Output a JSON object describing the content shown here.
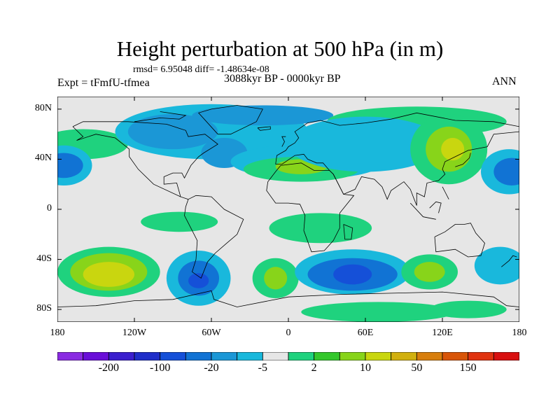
{
  "title": "Height perturbation at 500 hPa (in m)",
  "subtitle": "rmsd= 6.95048 diff= -1.48634e-08",
  "experiment": "Expt = tFmfU-tfmea",
  "period": "3088kyr BP - 0000kyr BP",
  "season": "ANN",
  "y_axis": {
    "labels": [
      "80N",
      "40N",
      "0",
      "40S",
      "80S"
    ],
    "lats": [
      80,
      40,
      0,
      -40,
      -80
    ],
    "range": [
      -90,
      90
    ]
  },
  "x_axis": {
    "labels": [
      "180",
      "120W",
      "60W",
      "0",
      "60E",
      "120E",
      "180"
    ],
    "lons": [
      -180,
      -120,
      -60,
      0,
      60,
      120,
      180
    ],
    "range": [
      -180,
      180
    ]
  },
  "colorbar": {
    "colors": [
      "#8a2be2",
      "#6a0fd8",
      "#3b1fce",
      "#1f2ec9",
      "#1550d8",
      "#1173d4",
      "#1b97d6",
      "#19b8dc",
      "#e6e6e6",
      "#1fd27e",
      "#34c72c",
      "#88d41a",
      "#c9d60f",
      "#d1b00f",
      "#d77e0d",
      "#d85508",
      "#e03310",
      "#d81010"
    ],
    "labels": [
      "-200",
      "-100",
      "-20",
      "-5",
      "2",
      "10",
      "50",
      "150"
    ],
    "label_after_box": [
      1,
      3,
      5,
      7,
      9,
      11,
      13,
      15
    ]
  },
  "map_fields": {
    "background_color": "#e6e6e6",
    "blobs": [
      {
        "lon": -160,
        "lat": 52,
        "rlon": 35,
        "rlat": 12,
        "color": "#1fd27e"
      },
      {
        "lon": -175,
        "lat": 35,
        "rlon": 22,
        "rlat": 16,
        "color": "#19b8dc"
      },
      {
        "lon": -175,
        "lat": 35,
        "rlon": 15,
        "rlat": 10,
        "color": "#1173d4"
      },
      {
        "lon": -60,
        "lat": 62,
        "rlon": 75,
        "rlat": 22,
        "color": "#19b8dc"
      },
      {
        "lon": -90,
        "lat": 62,
        "rlon": 35,
        "rlat": 14,
        "color": "#1b97d6"
      },
      {
        "lon": -50,
        "lat": 45,
        "rlon": 18,
        "rlat": 12,
        "color": "#1b97d6"
      },
      {
        "lon": -20,
        "lat": 75,
        "rlon": 55,
        "rlat": 8,
        "color": "#1b97d6"
      },
      {
        "lon": 15,
        "lat": 38,
        "rlon": 60,
        "rlat": 14,
        "color": "#19b8dc"
      },
      {
        "lon": 10,
        "lat": 32,
        "rlon": 45,
        "rlat": 10,
        "color": "#1fd27e"
      },
      {
        "lon": 10,
        "lat": 34,
        "rlon": 20,
        "rlat": 6,
        "color": "#88d41a"
      },
      {
        "lon": 100,
        "lat": 70,
        "rlon": 70,
        "rlat": 12,
        "color": "#1fd27e"
      },
      {
        "lon": 60,
        "lat": 52,
        "rlon": 60,
        "rlat": 22,
        "color": "#19b8dc"
      },
      {
        "lon": 125,
        "lat": 48,
        "rlon": 30,
        "rlat": 28,
        "color": "#1fd27e"
      },
      {
        "lon": 125,
        "lat": 48,
        "rlon": 18,
        "rlat": 18,
        "color": "#88d41a"
      },
      {
        "lon": 128,
        "lat": 48,
        "rlon": 9,
        "rlat": 9,
        "color": "#c9d60f"
      },
      {
        "lon": 172,
        "lat": 30,
        "rlon": 22,
        "rlat": 18,
        "color": "#19b8dc"
      },
      {
        "lon": 174,
        "lat": 30,
        "rlon": 14,
        "rlat": 11,
        "color": "#1173d4"
      },
      {
        "lon": -85,
        "lat": -10,
        "rlon": 30,
        "rlat": 8,
        "color": "#1fd27e"
      },
      {
        "lon": 25,
        "lat": -15,
        "rlon": 40,
        "rlat": 12,
        "color": "#1fd27e"
      },
      {
        "lon": -140,
        "lat": -50,
        "rlon": 40,
        "rlat": 20,
        "color": "#1fd27e"
      },
      {
        "lon": -140,
        "lat": -50,
        "rlon": 30,
        "rlat": 15,
        "color": "#88d41a"
      },
      {
        "lon": -140,
        "lat": -52,
        "rlon": 20,
        "rlat": 10,
        "color": "#c9d60f"
      },
      {
        "lon": -70,
        "lat": -55,
        "rlon": 25,
        "rlat": 22,
        "color": "#19b8dc"
      },
      {
        "lon": -70,
        "lat": -55,
        "rlon": 16,
        "rlat": 14,
        "color": "#1173d4"
      },
      {
        "lon": -70,
        "lat": -57,
        "rlon": 8,
        "rlat": 6,
        "color": "#1550d8"
      },
      {
        "lon": -10,
        "lat": -55,
        "rlon": 18,
        "rlat": 16,
        "color": "#1fd27e"
      },
      {
        "lon": -10,
        "lat": -55,
        "rlon": 9,
        "rlat": 9,
        "color": "#88d41a"
      },
      {
        "lon": 50,
        "lat": -50,
        "rlon": 45,
        "rlat": 18,
        "color": "#19b8dc"
      },
      {
        "lon": 50,
        "lat": -52,
        "rlon": 35,
        "rlat": 13,
        "color": "#1173d4"
      },
      {
        "lon": 50,
        "lat": -52,
        "rlon": 15,
        "rlat": 8,
        "color": "#1550d8"
      },
      {
        "lon": 110,
        "lat": -50,
        "rlon": 22,
        "rlat": 14,
        "color": "#1fd27e"
      },
      {
        "lon": 110,
        "lat": -50,
        "rlon": 12,
        "rlat": 8,
        "color": "#88d41a"
      },
      {
        "lon": 165,
        "lat": -45,
        "rlon": 20,
        "rlat": 15,
        "color": "#19b8dc"
      },
      {
        "lon": 70,
        "lat": -82,
        "rlon": 60,
        "rlat": 8,
        "color": "#1fd27e"
      },
      {
        "lon": 140,
        "lat": -80,
        "rlon": 30,
        "rlat": 7,
        "color": "#1fd27e"
      }
    ],
    "coastlines": [
      [
        [
          -168,
          66
        ],
        [
          -160,
          70
        ],
        [
          -140,
          70
        ],
        [
          -125,
          70
        ],
        [
          -95,
          68
        ],
        [
          -80,
          63
        ],
        [
          -78,
          58
        ],
        [
          -65,
          60
        ],
        [
          -55,
          52
        ],
        [
          -66,
          45
        ],
        [
          -70,
          42
        ],
        [
          -76,
          35
        ],
        [
          -81,
          25
        ],
        [
          -83,
          29
        ],
        [
          -90,
          29
        ],
        [
          -97,
          26
        ],
        [
          -97,
          20
        ],
        [
          -87,
          21
        ],
        [
          -84,
          10
        ],
        [
          -78,
          8
        ],
        [
          -80,
          2
        ],
        [
          -81,
          -5
        ],
        [
          -76,
          -15
        ],
        [
          -71,
          -25
        ],
        [
          -72,
          -40
        ],
        [
          -75,
          -50
        ],
        [
          -68,
          -55
        ],
        [
          -63,
          -42
        ],
        [
          -57,
          -35
        ],
        [
          -48,
          -27
        ],
        [
          -40,
          -20
        ],
        [
          -35,
          -8
        ],
        [
          -50,
          0
        ],
        [
          -60,
          10
        ],
        [
          -72,
          11
        ],
        [
          -78,
          8
        ]
      ],
      [
        [
          -84,
          10
        ],
        [
          -105,
          20
        ],
        [
          -117,
          32
        ],
        [
          -124,
          42
        ],
        [
          -124,
          48
        ],
        [
          -135,
          57
        ],
        [
          -150,
          60
        ],
        [
          -165,
          55
        ],
        [
          -160,
          58
        ],
        [
          -168,
          66
        ]
      ],
      [
        [
          -10,
          36
        ],
        [
          -9,
          43
        ],
        [
          -2,
          47
        ],
        [
          0,
          50
        ],
        [
          5,
          53
        ],
        [
          8,
          57
        ],
        [
          5,
          62
        ],
        [
          15,
          69
        ],
        [
          25,
          71
        ],
        [
          40,
          67
        ],
        [
          60,
          69
        ],
        [
          80,
          72
        ],
        [
          100,
          77
        ],
        [
          130,
          71
        ],
        [
          160,
          70
        ],
        [
          180,
          66
        ]
      ],
      [
        [
          180,
          62
        ],
        [
          160,
          60
        ],
        [
          155,
          50
        ],
        [
          140,
          47
        ],
        [
          130,
          42
        ],
        [
          122,
          38
        ],
        [
          120,
          32
        ],
        [
          122,
          28
        ],
        [
          117,
          23
        ],
        [
          108,
          21
        ],
        [
          106,
          10
        ],
        [
          100,
          13
        ],
        [
          100,
          3
        ],
        [
          98,
          8
        ],
        [
          95,
          16
        ],
        [
          90,
          22
        ],
        [
          80,
          15
        ],
        [
          77,
          8
        ],
        [
          73,
          18
        ],
        [
          67,
          24
        ],
        [
          57,
          26
        ],
        [
          52,
          16
        ],
        [
          43,
          12
        ],
        [
          35,
          28
        ],
        [
          32,
          31
        ],
        [
          27,
          37
        ],
        [
          22,
          37
        ],
        [
          15,
          40
        ],
        [
          12,
          44
        ],
        [
          5,
          43
        ],
        [
          -5,
          36
        ],
        [
          -10,
          36
        ]
      ],
      [
        [
          -6,
          35
        ],
        [
          10,
          37
        ],
        [
          20,
          31
        ],
        [
          32,
          31
        ],
        [
          35,
          28
        ],
        [
          43,
          12
        ],
        [
          51,
          11
        ],
        [
          40,
          -3
        ],
        [
          40,
          -15
        ],
        [
          35,
          -25
        ],
        [
          28,
          -33
        ],
        [
          18,
          -34
        ],
        [
          12,
          -17
        ],
        [
          13,
          -5
        ],
        [
          9,
          4
        ],
        [
          0,
          5
        ],
        [
          -10,
          5
        ],
        [
          -17,
          15
        ],
        [
          -16,
          22
        ],
        [
          -10,
          30
        ],
        [
          -6,
          35
        ]
      ],
      [
        [
          114,
          -22
        ],
        [
          122,
          -18
        ],
        [
          130,
          -12
        ],
        [
          137,
          -12
        ],
        [
          142,
          -11
        ],
        [
          146,
          -19
        ],
        [
          153,
          -27
        ],
        [
          150,
          -37
        ],
        [
          140,
          -38
        ],
        [
          130,
          -32
        ],
        [
          115,
          -34
        ],
        [
          114,
          -22
        ]
      ],
      [
        [
          -55,
          60
        ],
        [
          -45,
          60
        ],
        [
          -25,
          70
        ],
        [
          -20,
          80
        ],
        [
          -40,
          83
        ],
        [
          -60,
          80
        ],
        [
          -70,
          77
        ],
        [
          -55,
          60
        ]
      ],
      [
        [
          -180,
          -78
        ],
        [
          -150,
          -77
        ],
        [
          -120,
          -73
        ],
        [
          -90,
          -72
        ],
        [
          -60,
          -65
        ],
        [
          -58,
          -72
        ],
        [
          -40,
          -78
        ],
        [
          0,
          -70
        ],
        [
          40,
          -68
        ],
        [
          80,
          -67
        ],
        [
          120,
          -66
        ],
        [
          160,
          -70
        ],
        [
          170,
          -77
        ],
        [
          180,
          -78
        ]
      ],
      [
        [
          -120,
          70
        ],
        [
          -100,
          73
        ],
        [
          -85,
          72
        ],
        [
          -80,
          75
        ],
        [
          -100,
          78
        ]
      ],
      [
        [
          130,
          34
        ],
        [
          136,
          36
        ],
        [
          141,
          41
        ],
        [
          142,
          45
        ]
      ],
      [
        [
          166,
          -46
        ],
        [
          172,
          -41
        ],
        [
          175,
          -37
        ],
        [
          178,
          -38
        ]
      ],
      [
        [
          95,
          5
        ],
        [
          105,
          -6
        ],
        [
          115,
          -8
        ]
      ],
      [
        [
          110,
          1
        ],
        [
          115,
          6
        ],
        [
          119,
          5
        ],
        [
          117,
          -3
        ]
      ],
      [
        [
          120,
          18
        ],
        [
          122,
          14
        ],
        [
          125,
          8
        ]
      ],
      [
        [
          43,
          -12
        ],
        [
          50,
          -15
        ],
        [
          49,
          -24
        ],
        [
          44,
          -24
        ],
        [
          43,
          -12
        ]
      ],
      [
        [
          -5,
          50
        ],
        [
          -3,
          54
        ],
        [
          -5,
          58
        ],
        [
          -2,
          58
        ]
      ],
      [
        [
          -24,
          65
        ],
        [
          -14,
          66
        ],
        [
          -14,
          64
        ],
        [
          -22,
          63
        ],
        [
          -24,
          65
        ]
      ]
    ]
  }
}
